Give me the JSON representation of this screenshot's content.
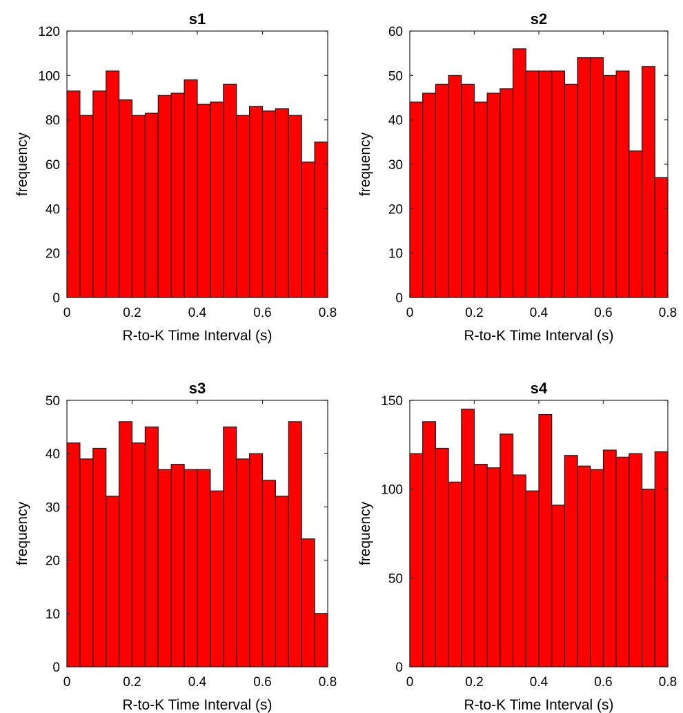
{
  "colors": {
    "bar_fill": "#ff0000",
    "bar_edge": "#1a1a1a",
    "axis": "#262626"
  },
  "chart_data": [
    {
      "type": "bar",
      "title": "s1",
      "xlabel": "R-to-K Time Interval (s)",
      "ylabel": "frequency",
      "bin_edges": [
        0,
        0.04,
        0.08,
        0.12,
        0.16,
        0.2,
        0.24,
        0.28,
        0.32,
        0.36,
        0.4,
        0.44,
        0.48,
        0.52,
        0.56,
        0.6,
        0.64,
        0.68,
        0.72,
        0.76,
        0.8
      ],
      "values": [
        93,
        82,
        93,
        102,
        89,
        82,
        83,
        91,
        92,
        98,
        87,
        88,
        96,
        82,
        86,
        84,
        85,
        82,
        61,
        70
      ],
      "xlim": [
        0,
        0.8
      ],
      "ylim": [
        0,
        120
      ],
      "xticks": [
        "0",
        "0.2",
        "0.4",
        "0.6",
        "0.8"
      ],
      "yticks": [
        "0",
        "20",
        "40",
        "60",
        "80",
        "100",
        "120"
      ],
      "grid": false
    },
    {
      "type": "bar",
      "title": "s2",
      "xlabel": "R-to-K Time Interval (s)",
      "ylabel": "frequency",
      "bin_edges": [
        0,
        0.04,
        0.08,
        0.12,
        0.16,
        0.2,
        0.24,
        0.28,
        0.32,
        0.36,
        0.4,
        0.44,
        0.48,
        0.52,
        0.56,
        0.6,
        0.64,
        0.68,
        0.72,
        0.76,
        0.8
      ],
      "values": [
        44,
        46,
        48,
        50,
        48,
        44,
        46,
        47,
        56,
        51,
        51,
        51,
        48,
        54,
        54,
        50,
        51,
        33,
        52,
        27
      ],
      "xlim": [
        0,
        0.8
      ],
      "ylim": [
        0,
        60
      ],
      "xticks": [
        "0",
        "0.2",
        "0.4",
        "0.6",
        "0.8"
      ],
      "yticks": [
        "0",
        "10",
        "20",
        "30",
        "40",
        "50",
        "60"
      ],
      "grid": false
    },
    {
      "type": "bar",
      "title": "s3",
      "xlabel": "R-to-K Time Interval (s)",
      "ylabel": "frequency",
      "bin_edges": [
        0,
        0.04,
        0.08,
        0.12,
        0.16,
        0.2,
        0.24,
        0.28,
        0.32,
        0.36,
        0.4,
        0.44,
        0.48,
        0.52,
        0.56,
        0.6,
        0.64,
        0.68,
        0.72,
        0.76,
        0.8
      ],
      "values": [
        42,
        39,
        41,
        32,
        46,
        42,
        45,
        37,
        38,
        37,
        37,
        33,
        45,
        39,
        40,
        35,
        32,
        46,
        24,
        10
      ],
      "xlim": [
        0,
        0.8
      ],
      "ylim": [
        0,
        50
      ],
      "xticks": [
        "0",
        "0.2",
        "0.4",
        "0.6",
        "0.8"
      ],
      "yticks": [
        "0",
        "10",
        "20",
        "30",
        "40",
        "50"
      ],
      "grid": false
    },
    {
      "type": "bar",
      "title": "s4",
      "xlabel": "R-to-K Time Interval (s)",
      "ylabel": "frequency",
      "bin_edges": [
        0,
        0.04,
        0.08,
        0.12,
        0.16,
        0.2,
        0.24,
        0.28,
        0.32,
        0.36,
        0.4,
        0.44,
        0.48,
        0.52,
        0.56,
        0.6,
        0.64,
        0.68,
        0.72,
        0.76,
        0.8
      ],
      "values": [
        120,
        138,
        123,
        104,
        145,
        114,
        112,
        131,
        108,
        99,
        142,
        91,
        119,
        113,
        111,
        122,
        118,
        120,
        100,
        121
      ],
      "xlim": [
        0,
        0.8
      ],
      "ylim": [
        0,
        150
      ],
      "xticks": [
        "0",
        "0.2",
        "0.4",
        "0.6",
        "0.8"
      ],
      "yticks": [
        "0",
        "50",
        "100",
        "150"
      ],
      "grid": false
    }
  ]
}
